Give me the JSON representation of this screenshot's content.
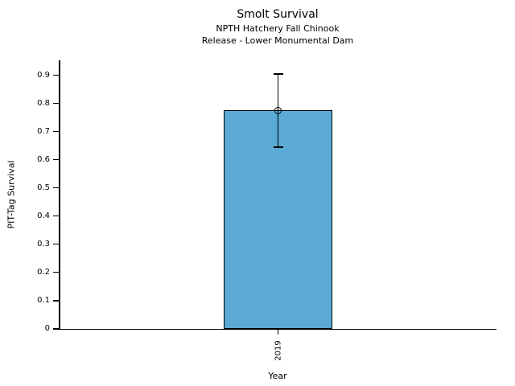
{
  "chart_data": {
    "type": "bar",
    "title": "Smolt Survival",
    "subtitle1": "NPTH Hatchery Fall Chinook",
    "subtitle2": "Release - Lower Monumental Dam",
    "xlabel": "Year",
    "ylabel": "PIT-Tag Survival",
    "categories": [
      "2019"
    ],
    "values": [
      0.775
    ],
    "error_bars": [
      {
        "lower": 0.645,
        "upper": 0.905
      }
    ],
    "marker": "open-circle",
    "yticks": [
      0,
      0.1,
      0.2,
      0.3,
      0.4,
      0.5,
      0.6,
      0.7,
      0.8,
      0.9
    ],
    "ytick_labels": [
      "0",
      "0.1",
      "0.2",
      "0.3",
      "0.4",
      "0.5",
      "0.6",
      "0.7",
      "0.8",
      "0.9"
    ],
    "ylim": [
      0,
      0.953
    ],
    "grid": false,
    "legend": null,
    "bar_color": "#5BA9D5",
    "edge_color": "#000000",
    "text_color": "#000000"
  }
}
